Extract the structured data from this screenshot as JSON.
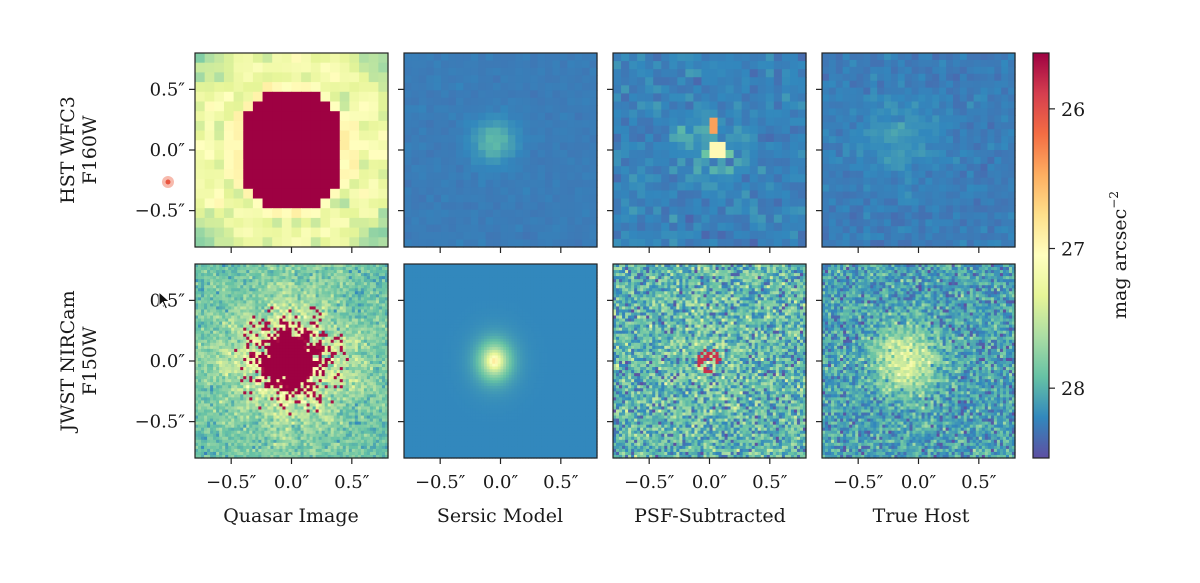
{
  "chart_data": {
    "type": "heatmap",
    "colormap": "Spectral_r",
    "panels": [
      {
        "row": 0,
        "col": 0,
        "pattern": "hst-quasar"
      },
      {
        "row": 0,
        "col": 1,
        "pattern": "hst-sersic"
      },
      {
        "row": 0,
        "col": 2,
        "pattern": "hst-psfsub"
      },
      {
        "row": 0,
        "col": 3,
        "pattern": "hst-host"
      },
      {
        "row": 1,
        "col": 0,
        "pattern": "jwst-quasar"
      },
      {
        "row": 1,
        "col": 1,
        "pattern": "jwst-sersic"
      },
      {
        "row": 1,
        "col": 2,
        "pattern": "jwst-psfsub"
      },
      {
        "row": 1,
        "col": 3,
        "pattern": "jwst-host"
      }
    ],
    "rows": [
      {
        "label_line1": "HST WFC3",
        "label_line2": "F160W"
      },
      {
        "label_line1": "JWST NIRCam",
        "label_line2": "F150W"
      }
    ],
    "columns": [
      "Quasar Image",
      "Sersic Model",
      "PSF-Subtracted",
      "True Host"
    ],
    "xlim": [
      -0.8,
      0.8
    ],
    "ylim": [
      -0.8,
      0.8
    ],
    "x_ticks": [
      -0.5,
      0.0,
      0.5
    ],
    "y_ticks": [
      0.5,
      0.0,
      -0.5
    ],
    "x_tick_labels": [
      "−0.5″",
      "0.0″",
      "0.5″"
    ],
    "y_tick_labels": [
      "0.5″",
      "0.0″",
      "−0.5″"
    ],
    "colorbar": {
      "label": "mag arcsec",
      "label_exponent": "−2",
      "range": [
        25.6,
        28.5
      ],
      "reversed": true,
      "ticks": [
        26,
        27,
        28
      ],
      "tick_labels": [
        "26",
        "27",
        "28"
      ]
    }
  }
}
